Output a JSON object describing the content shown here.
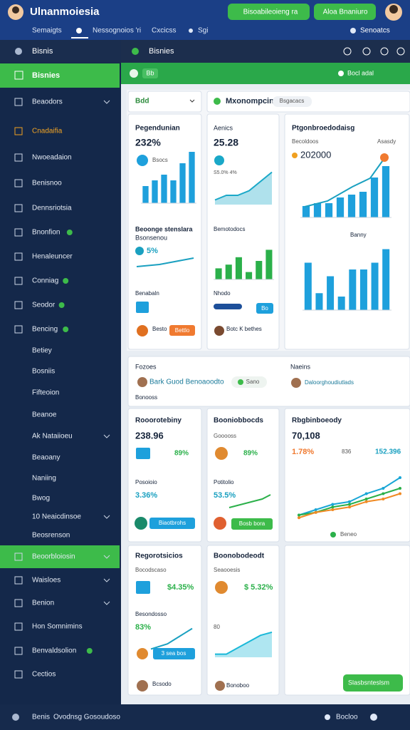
{
  "header": {
    "title": "Ulnanmoiesia",
    "buttons": [
      "Bisoabileoieng ra",
      "Aloa Bnaniuro"
    ],
    "tabs": [
      "Semaigts",
      "Nessognoios 'ri",
      "Cxcicss",
      "Sgi"
    ],
    "account": "Senoatcs"
  },
  "sidebar": {
    "title": "Bisnis",
    "active": "Bisnies",
    "items": [
      "Beaodors",
      "Cnadaifia",
      "Nwoeadaion",
      "Benisnoo",
      "Dennsriotsia",
      "Bnonfion",
      "Henaleuncer",
      "Conniag",
      "Seodor",
      "Bencing",
      "Betiey",
      "Bosniis",
      "Fifteoion",
      "Beanoe",
      "Ak Nataiioeu",
      "Beaoany",
      "Naniing",
      "Bwog",
      "10 Neaicdinsoe",
      "Beosrenson",
      "Beoorbloiosin",
      "Waisloes",
      "Benion",
      "Hon Somnimins",
      "Benvaldsolion",
      "Cectios"
    ],
    "footer": "Benis"
  },
  "toolbar": {
    "title": "Bisnies",
    "tab": "Bb",
    "action": "Bocl adal"
  },
  "top_panel": {
    "filter": "Bdd",
    "title": "Mxonompcin",
    "badge": "Bsgacacs"
  },
  "cards": [
    {
      "title": "Pegendunian",
      "value": "232%",
      "sub": "Bsocs",
      "chart": {
        "type": "bar",
        "values": [
          3,
          4,
          5,
          4,
          7,
          9
        ],
        "ylim": [
          0,
          10
        ],
        "color": "#1ea0dc"
      },
      "title2": "Beoonge stenslara",
      "sub2": "Bsonsenou",
      "value2": "5%",
      "chart2": {
        "type": "line",
        "values": [
          2,
          2.5,
          3,
          4,
          5,
          6
        ],
        "ylim": [
          0,
          10
        ],
        "color": "#1aa0c0"
      },
      "label3": "Benabaln",
      "name": "Besto",
      "button": "Bettlo"
    },
    {
      "title": "Aenics",
      "value": "25.28",
      "sub": "S5.0% 4%",
      "chart": {
        "type": "area",
        "values": [
          1,
          2,
          2,
          3,
          5,
          7
        ],
        "ylim": [
          0,
          10
        ],
        "color": "#1aa8c8"
      },
      "title2": "Bemotodocs",
      "chart2": {
        "type": "bar",
        "values": [
          3,
          4,
          6,
          2,
          5,
          8
        ],
        "ylim": [
          0,
          10
        ],
        "color": "#2bb04a"
      },
      "label3": "Nhodo",
      "button": "Bo",
      "name": "Botc K bethes"
    },
    {
      "title": "Ptgonbroedodaisg",
      "sub": "Becoldoos",
      "sub_right": "Asasdy",
      "value": "202000",
      "chart": {
        "type": "bar",
        "values": [
          2,
          2.5,
          2.5,
          3.5,
          4,
          4.5,
          7,
          9
        ],
        "ylim": [
          0,
          10
        ],
        "color": "#1ea0dc"
      },
      "title2": "Banny",
      "chart2": {
        "type": "bar",
        "values": [
          7,
          2.5,
          5,
          2,
          6,
          6,
          7,
          9
        ],
        "ylim": [
          0,
          10
        ],
        "color": "#1ea0dc"
      }
    },
    {
      "title": "Rooorotebiny",
      "value": "238.96",
      "stat": "89%",
      "title2": "Posoioio",
      "value2": "3.36%",
      "button": "Biaotbrohs"
    },
    {
      "title": "Booniobbocds",
      "sub": "Gooooss",
      "stat": "89%",
      "title2": "Potitolio",
      "value2": "53.5%",
      "chart2": {
        "type": "line",
        "values": [
          2,
          3,
          4,
          5,
          6,
          8
        ],
        "ylim": [
          0,
          10
        ],
        "color": "#2bb04a"
      },
      "button": "Bosb bora"
    },
    {
      "title": "Rbgbinboeody",
      "value": "70,108",
      "stat": "1.78%",
      "stat2": "836",
      "stat3": "152.396",
      "chart": {
        "type": "multi",
        "ylim": [
          0,
          10
        ],
        "series": [
          {
            "color": "#19a6d6",
            "values": [
              1,
              2,
              3,
              3.5,
              5,
              6,
              8
            ]
          },
          {
            "color": "#2bb04a",
            "values": [
              1,
              1.5,
              2.5,
              3,
              4,
              5,
              6
            ]
          },
          {
            "color": "#f08a24",
            "values": [
              0.5,
              1.5,
              2,
              2.5,
              3.5,
              4,
              5
            ]
          }
        ]
      },
      "legend": "Beneo"
    },
    {
      "title": "Regorotsicios",
      "sub": "Bocodscaso",
      "stat": "$4.35%",
      "title2": "Besondosso",
      "value2": "83%",
      "chart2": {
        "type": "line",
        "values": [
          1,
          2,
          3,
          5,
          7,
          9
        ],
        "ylim": [
          0,
          10
        ],
        "color": "#1aa0c0"
      },
      "button": "3 sea bos",
      "name": "Bcsodo"
    },
    {
      "title": "Boonobodeodt",
      "sub": "Seaooesis",
      "stat": "$ 5.32%",
      "label": "80",
      "chart": {
        "type": "area",
        "values": [
          1,
          1,
          3,
          5,
          7,
          8
        ],
        "ylim": [
          0,
          10
        ],
        "color": "#1ab8d8"
      },
      "name": "Bonoboo"
    }
  ],
  "mid": {
    "left_title": "Fozoes",
    "item": "Bark Guod Benoaoodto",
    "tag": "Sano",
    "left_sub": "Bonooss",
    "right_title": "Naeins",
    "right_item": "Daloorghoudiutlads"
  },
  "cta": "Slasbsnteslsm",
  "footer": {
    "status": "Ovodnsg Gosoudoso",
    "right": "Bocloo"
  }
}
